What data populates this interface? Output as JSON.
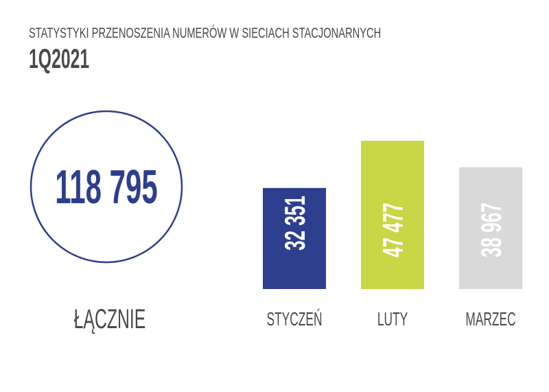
{
  "chart_data": {
    "type": "bar",
    "title": "STATYSTYKI PRZENOSZENIA NUMERÓW W SIECIACH STACJONARNYCH",
    "subtitle": "1Q2021",
    "total": {
      "value_label": "118 795",
      "value": 118795,
      "label": "ŁĄCZNIE"
    },
    "categories": [
      "STYCZEŃ",
      "LUTY",
      "MARZEC"
    ],
    "values": [
      32351,
      47477,
      38967
    ],
    "value_labels": [
      "32 351",
      "47 477",
      "38 967"
    ],
    "colors": [
      "#2e3e8e",
      "#c9d645",
      "#d9d9d9"
    ],
    "text_color": "#4a4a4a",
    "accent_color": "#2e3e8e",
    "xlabel": "",
    "ylabel": ""
  }
}
